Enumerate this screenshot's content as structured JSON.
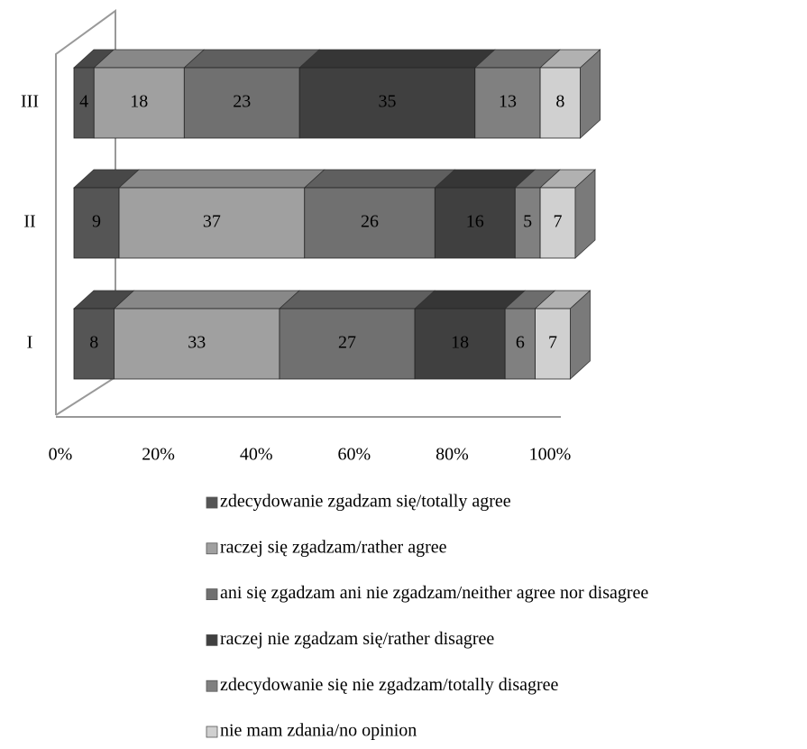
{
  "chart_data": {
    "type": "stacked-bar-3d",
    "categories": [
      "I",
      "II",
      "III"
    ],
    "series": [
      {
        "name": "zdecydowanie zgadzam się/totally agree",
        "color": "#555555",
        "values": [
          8,
          9,
          4
        ]
      },
      {
        "name": "raczej się zgadzam/rather agree",
        "color": "#a0a0a0",
        "values": [
          33,
          37,
          18
        ]
      },
      {
        "name": "ani się zgadzam ani nie zgadzam/neither agree nor disagree",
        "color": "#707070",
        "values": [
          27,
          26,
          23
        ]
      },
      {
        "name": "raczej nie zgadzam się/rather disagree",
        "color": "#404040",
        "values": [
          18,
          16,
          35
        ]
      },
      {
        "name": "zdecydowanie się nie zgadzam/totally disagree",
        "color": "#808080",
        "values": [
          6,
          5,
          13
        ]
      },
      {
        "name": "nie mam zdania/no opinion",
        "color": "#d0d0d0",
        "values": [
          7,
          7,
          8
        ]
      }
    ],
    "xlim": [
      0,
      100
    ],
    "xticks": [
      {
        "value": 0,
        "label": "0%"
      },
      {
        "value": 20,
        "label": "20%"
      },
      {
        "value": 40,
        "label": "40%"
      },
      {
        "value": 60,
        "label": "60%"
      },
      {
        "value": 80,
        "label": "80%"
      },
      {
        "value": 100,
        "label": "100%"
      }
    ]
  }
}
